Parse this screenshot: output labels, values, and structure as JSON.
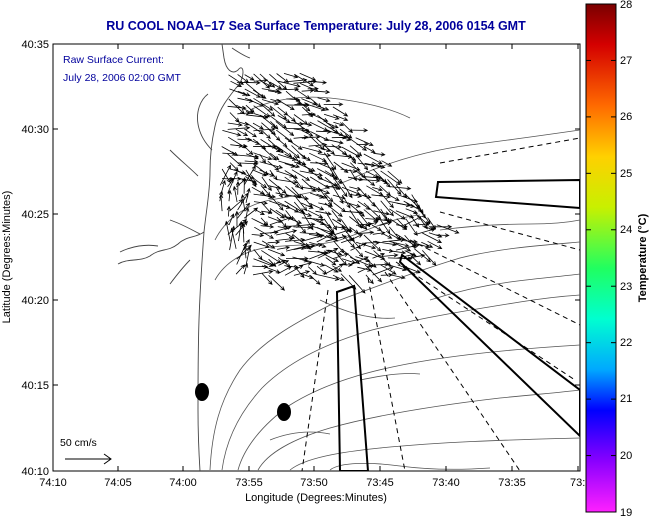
{
  "title": "RU COOL  NOAA−17  Sea Surface Temperature:  July 28, 2006 0154 GMT",
  "annotation": {
    "line1": "Raw Surface Current:",
    "line2": "July 28, 2006 02:00 GMT"
  },
  "axes": {
    "xlabel": "Longitude (Degrees:Minutes)",
    "ylabel": "Latitude (Degrees:Minutes)",
    "xticks": [
      "74:10",
      "74:05",
      "74:00",
      "73:55",
      "73:50",
      "73:45",
      "73:40",
      "73:35",
      "73:3"
    ],
    "yticks": [
      "40:35",
      "40:30",
      "40:25",
      "40:20",
      "40:15",
      "40:10"
    ]
  },
  "scale": {
    "label": "50 cm/s"
  },
  "colorbar": {
    "label": "Temperature (°C)",
    "ticks": [
      "28",
      "27",
      "26",
      "25",
      "24",
      "23",
      "22",
      "21",
      "20",
      "19"
    ],
    "min": 19,
    "max": 28
  },
  "colors": {
    "title": "#00009c",
    "annotation": "#00009c",
    "axis": "#000000",
    "contour": "#555555",
    "background": "#ffffff"
  }
}
